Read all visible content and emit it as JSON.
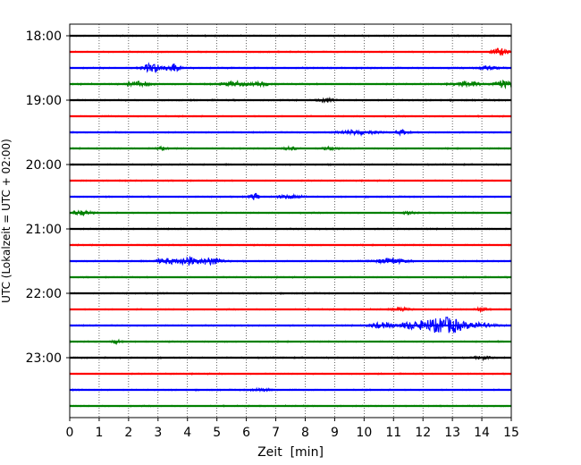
{
  "chart_data": {
    "type": "line",
    "title": "",
    "xlabel": "Zeit  [min]",
    "ylabel": "UTC (Lokalzeit = UTC + 02:00)",
    "xlim": [
      0,
      15
    ],
    "x_ticks": [
      "0",
      "1",
      "2",
      "3",
      "4",
      "5",
      "6",
      "7",
      "8",
      "9",
      "10",
      "11",
      "12",
      "13",
      "14",
      "15"
    ],
    "y_ticks": [
      "18:00",
      "19:00",
      "20:00",
      "21:00",
      "22:00",
      "23:00"
    ],
    "grid": "vertical dotted at each minute",
    "trace_interval_min": 15,
    "trace_colors": [
      "#000000",
      "#ff0000",
      "#0000ff",
      "#008000"
    ],
    "series": [
      {
        "start": "18:00",
        "color": "#000000",
        "noise": 0.35,
        "events": []
      },
      {
        "start": "18:15",
        "color": "#ff0000",
        "noise": 0.35,
        "events": [
          {
            "t": 14.6,
            "amp": 4,
            "width": 0.25
          }
        ]
      },
      {
        "start": "18:30",
        "color": "#0000ff",
        "noise": 0.4,
        "events": [
          {
            "t": 2.8,
            "amp": 5,
            "width": 0.3
          },
          {
            "t": 3.5,
            "amp": 5,
            "width": 0.2
          },
          {
            "t": 14.2,
            "amp": 2,
            "width": 0.3
          }
        ]
      },
      {
        "start": "18:45",
        "color": "#008000",
        "noise": 0.4,
        "events": [
          {
            "t": 2.3,
            "amp": 2.5,
            "width": 0.4
          },
          {
            "t": 5.6,
            "amp": 2.5,
            "width": 0.4
          },
          {
            "t": 6.5,
            "amp": 2,
            "width": 0.3
          },
          {
            "t": 13.5,
            "amp": 3,
            "width": 0.4
          },
          {
            "t": 14.7,
            "amp": 4,
            "width": 0.3
          }
        ]
      },
      {
        "start": "19:00",
        "color": "#000000",
        "noise": 0.4,
        "events": [
          {
            "t": 8.7,
            "amp": 2,
            "width": 0.2
          }
        ]
      },
      {
        "start": "19:15",
        "color": "#ff0000",
        "noise": 0.35,
        "events": []
      },
      {
        "start": "19:30",
        "color": "#0000ff",
        "noise": 0.35,
        "events": [
          {
            "t": 9.8,
            "amp": 2.5,
            "width": 0.6
          },
          {
            "t": 11.3,
            "amp": 2.5,
            "width": 0.2
          }
        ]
      },
      {
        "start": "19:45",
        "color": "#008000",
        "noise": 0.35,
        "events": [
          {
            "t": 3.1,
            "amp": 1.5,
            "width": 0.2
          },
          {
            "t": 7.5,
            "amp": 2,
            "width": 0.2
          },
          {
            "t": 8.8,
            "amp": 2,
            "width": 0.2
          }
        ]
      },
      {
        "start": "20:00",
        "color": "#000000",
        "noise": 0.35,
        "events": []
      },
      {
        "start": "20:15",
        "color": "#ff0000",
        "noise": 0.35,
        "events": []
      },
      {
        "start": "20:30",
        "color": "#0000ff",
        "noise": 0.35,
        "events": [
          {
            "t": 6.3,
            "amp": 4,
            "width": 0.15
          },
          {
            "t": 7.5,
            "amp": 2,
            "width": 0.4
          }
        ]
      },
      {
        "start": "20:45",
        "color": "#008000",
        "noise": 0.35,
        "events": [
          {
            "t": 0.4,
            "amp": 2.5,
            "width": 0.3
          },
          {
            "t": 11.5,
            "amp": 1.5,
            "width": 0.2
          }
        ]
      },
      {
        "start": "21:00",
        "color": "#000000",
        "noise": 0.35,
        "events": []
      },
      {
        "start": "21:15",
        "color": "#ff0000",
        "noise": 0.35,
        "events": []
      },
      {
        "start": "21:30",
        "color": "#0000ff",
        "noise": 0.35,
        "events": [
          {
            "t": 3.3,
            "amp": 3,
            "width": 0.35
          },
          {
            "t": 4.0,
            "amp": 5,
            "width": 0.3
          },
          {
            "t": 4.8,
            "amp": 4,
            "width": 0.4
          },
          {
            "t": 10.9,
            "amp": 3,
            "width": 0.5
          }
        ]
      },
      {
        "start": "21:45",
        "color": "#008000",
        "noise": 0.35,
        "events": []
      },
      {
        "start": "22:00",
        "color": "#000000",
        "noise": 0.35,
        "events": []
      },
      {
        "start": "22:15",
        "color": "#ff0000",
        "noise": 0.35,
        "events": [
          {
            "t": 11.3,
            "amp": 2,
            "width": 0.3
          },
          {
            "t": 14.0,
            "amp": 2,
            "width": 0.2
          }
        ]
      },
      {
        "start": "22:30",
        "color": "#0000ff",
        "noise": 0.35,
        "events": [
          {
            "t": 10.6,
            "amp": 3,
            "width": 0.4
          },
          {
            "t": 11.6,
            "amp": 4,
            "width": 0.4
          },
          {
            "t": 12.3,
            "amp": 6,
            "width": 0.4
          },
          {
            "t": 12.9,
            "amp": 8,
            "width": 0.4
          },
          {
            "t": 13.8,
            "amp": 3,
            "width": 0.6
          }
        ]
      },
      {
        "start": "22:45",
        "color": "#008000",
        "noise": 0.35,
        "events": [
          {
            "t": 1.6,
            "amp": 2,
            "width": 0.15
          }
        ]
      },
      {
        "start": "23:00",
        "color": "#000000",
        "noise": 0.35,
        "events": [
          {
            "t": 14.0,
            "amp": 1.5,
            "width": 0.3
          }
        ]
      },
      {
        "start": "23:15",
        "color": "#ff0000",
        "noise": 0.35,
        "events": []
      },
      {
        "start": "23:30",
        "color": "#0000ff",
        "noise": 0.35,
        "events": [
          {
            "t": 6.5,
            "amp": 1.5,
            "width": 0.3
          }
        ]
      },
      {
        "start": "23:45",
        "color": "#008000",
        "noise": 0.35,
        "events": []
      }
    ]
  }
}
